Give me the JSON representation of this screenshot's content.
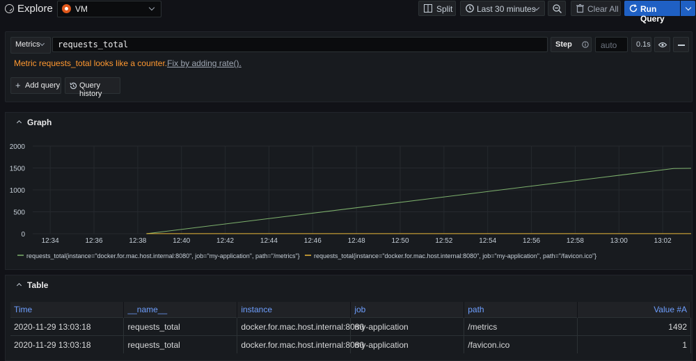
{
  "header": {
    "title": "Explore",
    "datasource": "VM",
    "split_label": "Split",
    "time_range": "Last 30 minutes",
    "clear_label": "Clear All",
    "run_label": "Run Query"
  },
  "query": {
    "metrics_label": "Metrics",
    "expr": "requests_total",
    "step_label": "Step",
    "step_placeholder": "auto",
    "duration": "0.1s",
    "hint_text": "Metric requests_total looks like a counter.",
    "hint_link": "Fix by adding rate().",
    "add_query_label": "Add query",
    "query_history_label": "Query history"
  },
  "graph": {
    "title": "Graph"
  },
  "chart_data": {
    "type": "line",
    "x_ticks": [
      "12:34",
      "12:36",
      "12:38",
      "12:40",
      "12:42",
      "12:44",
      "12:46",
      "12:48",
      "12:50",
      "12:52",
      "12:54",
      "12:56",
      "12:58",
      "13:00",
      "13:02"
    ],
    "y_ticks": [
      "0",
      "500",
      "1000",
      "1500",
      "2000"
    ],
    "ylim": [
      0,
      2000
    ],
    "xlim_minutes": [
      33.2,
      63.3
    ],
    "grid": true,
    "legend_position": "bottom",
    "series": [
      {
        "name": "requests_total{instance=\"docker.for.mac.host.internal:8080\", job=\"my-application\", path=\"/metrics\"}",
        "color": "#7eb26d",
        "points": [
          [
            38.4,
            0
          ],
          [
            62.5,
            1488
          ],
          [
            63.3,
            1492
          ]
        ]
      },
      {
        "name": "requests_total{instance=\"docker.for.mac.host.internal:8080\", job=\"my-application\", path=\"/favicon.ico\"}",
        "color": "#eab839",
        "points": [
          [
            38.4,
            1
          ],
          [
            63.3,
            1
          ]
        ]
      }
    ]
  },
  "table": {
    "title": "Table",
    "columns": [
      "Time",
      "__name__",
      "instance",
      "job",
      "path",
      "Value #A"
    ],
    "rows": [
      [
        "2020-11-29 13:03:18",
        "requests_total",
        "docker.for.mac.host.internal:8080",
        "my-application",
        "/metrics",
        "1492"
      ],
      [
        "2020-11-29 13:03:18",
        "requests_total",
        "docker.for.mac.host.internal:8080",
        "my-application",
        "/favicon.ico",
        "1"
      ]
    ]
  }
}
